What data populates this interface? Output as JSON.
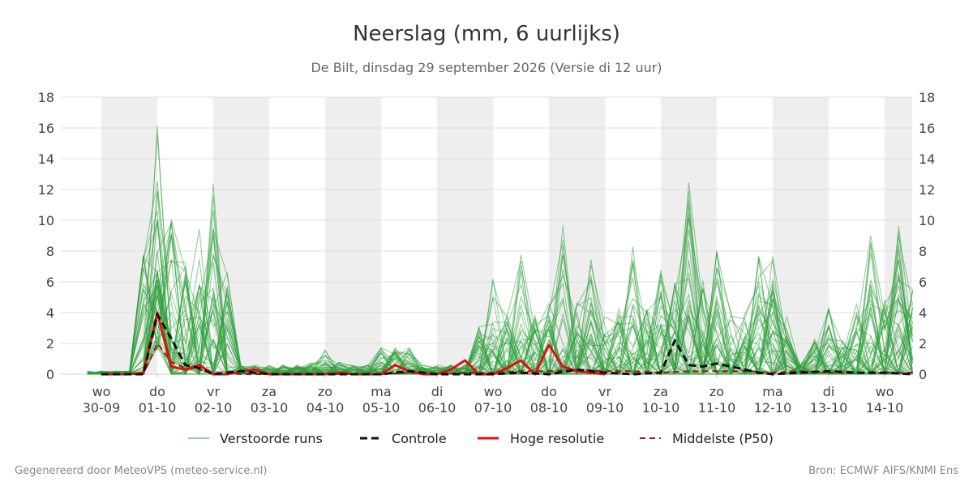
{
  "chart_data": {
    "type": "line",
    "title": "Neerslag (mm, 6 uurlijks)",
    "subtitle": "De Bilt, dinsdag 29 september 2026 (Versie di 12 uur)",
    "ylim": [
      0,
      18
    ],
    "yticks": [
      "0",
      "2",
      "4",
      "6",
      "8",
      "10",
      "12",
      "14",
      "16",
      "18"
    ],
    "xlim": [
      0,
      14.5
    ],
    "x_categories": [
      {
        "day": "wo",
        "date": "30-09"
      },
      {
        "day": "do",
        "date": "01-10"
      },
      {
        "day": "vr",
        "date": "02-10"
      },
      {
        "day": "za",
        "date": "03-10"
      },
      {
        "day": "zo",
        "date": "04-10"
      },
      {
        "day": "ma",
        "date": "05-10"
      },
      {
        "day": "di",
        "date": "06-10"
      },
      {
        "day": "wo",
        "date": "07-10"
      },
      {
        "day": "do",
        "date": "08-10"
      },
      {
        "day": "vr",
        "date": "09-10"
      },
      {
        "day": "za",
        "date": "10-10"
      },
      {
        "day": "zo",
        "date": "11-10"
      },
      {
        "day": "ma",
        "date": "12-10"
      },
      {
        "day": "di",
        "date": "13-10"
      },
      {
        "day": "wo",
        "date": "14-10"
      }
    ],
    "shaded_days": [
      0,
      2,
      4,
      6,
      8,
      10,
      12,
      14
    ],
    "grid": true,
    "legend_position": "bottom",
    "series": [
      {
        "name": "Controle",
        "color": "#111111",
        "style": "dashed",
        "x": [
          0,
          0.25,
          0.5,
          0.75,
          1.0,
          1.25,
          1.5,
          1.75,
          2.0,
          2.25,
          2.5,
          2.75,
          3.0,
          3.5,
          4.0,
          4.5,
          5.0,
          5.5,
          6.0,
          6.5,
          7.0,
          7.5,
          8.0,
          8.5,
          9.0,
          9.5,
          10.0,
          10.25,
          10.5,
          10.75,
          11.0,
          11.25,
          11.5,
          11.75,
          12.0,
          12.5,
          13.0,
          13.5,
          14.0,
          14.5
        ],
        "values": [
          0,
          0,
          0,
          0,
          3.9,
          2.3,
          0.6,
          0.4,
          0,
          0.1,
          0.2,
          0.1,
          0,
          0,
          0,
          0,
          0,
          0.2,
          0,
          0,
          0,
          0.1,
          0,
          0.3,
          0.1,
          0,
          0.1,
          2.2,
          0.6,
          0.5,
          0.7,
          0.5,
          0.3,
          0.1,
          0,
          0.1,
          0.2,
          0.1,
          0.1,
          0
        ]
      },
      {
        "name": "Hoge resolutie",
        "color": "#dd1111",
        "style": "solid",
        "x": [
          0,
          0.25,
          0.5,
          0.75,
          1.0,
          1.25,
          1.5,
          1.75,
          2.0,
          2.25,
          2.5,
          2.75,
          3.0,
          3.25,
          3.5,
          3.75,
          4.0,
          4.25,
          4.5,
          4.75,
          5.0,
          5.25,
          5.5,
          5.75,
          6.0,
          6.25,
          6.5,
          6.75,
          7.0,
          7.25,
          7.5,
          7.75,
          8.0,
          8.25,
          8.5,
          8.75,
          9.0
        ],
        "values": [
          0,
          0,
          0,
          0.1,
          4.0,
          0.5,
          0.3,
          0.6,
          0,
          0,
          0.2,
          0.3,
          0,
          0,
          0,
          0,
          0,
          0.1,
          0,
          0,
          0,
          0.6,
          0.2,
          0,
          0,
          0.3,
          0.9,
          0,
          0,
          0.4,
          0.9,
          0,
          1.9,
          0.5,
          0.2,
          0.1,
          0
        ]
      },
      {
        "name": "Middelste (P50)",
        "color": "#aa1111",
        "style": "dashed",
        "x": [
          0,
          0.25,
          0.5,
          0.75,
          1.0,
          1.25,
          1.5,
          1.75,
          2.0,
          2.5,
          3.0,
          3.5,
          4.0,
          4.5,
          5.0,
          5.5,
          6.0,
          6.5,
          7.0,
          7.5,
          8.0,
          8.5,
          9.0,
          9.5,
          10.0,
          10.5,
          11.0,
          11.5,
          12.0,
          12.5,
          13.0,
          13.5,
          14.0,
          14.5
        ],
        "values": [
          0,
          0,
          0,
          0,
          2.0,
          0.8,
          0.4,
          0.3,
          0.1,
          0,
          0,
          0,
          0,
          0,
          0,
          0.1,
          0,
          0.1,
          0.1,
          0.2,
          0.2,
          0.3,
          0.2,
          0.2,
          0.1,
          0.2,
          0.2,
          0.2,
          0.1,
          0.2,
          0.1,
          0.1,
          0.1,
          0.1
        ]
      }
    ],
    "ensemble": {
      "name": "Verstoorde runs",
      "color": "#2e9e3a",
      "members": 50,
      "peaks": [
        {
          "x": 1.0,
          "max": 16.2
        },
        {
          "x": 1.25,
          "max": 10.6
        },
        {
          "x": 1.5,
          "max": 7.3
        },
        {
          "x": 1.75,
          "max": 11.5
        },
        {
          "x": 2.0,
          "max": 13.3
        },
        {
          "x": 4.0,
          "max": 1.6
        },
        {
          "x": 5.25,
          "max": 4.2
        },
        {
          "x": 7.0,
          "max": 6.6
        },
        {
          "x": 7.5,
          "max": 8.1
        },
        {
          "x": 8.25,
          "max": 9.7
        },
        {
          "x": 8.75,
          "max": 7.8
        },
        {
          "x": 9.5,
          "max": 9.7
        },
        {
          "x": 10.0,
          "max": 7.4
        },
        {
          "x": 10.5,
          "max": 12.7
        },
        {
          "x": 11.0,
          "max": 8.6
        },
        {
          "x": 11.75,
          "max": 7.9
        },
        {
          "x": 12.0,
          "max": 8.1
        },
        {
          "x": 13.0,
          "max": 4.6
        },
        {
          "x": 13.75,
          "max": 9.5
        },
        {
          "x": 14.25,
          "max": 9.7
        },
        {
          "x": 14.5,
          "max": 6.1
        }
      ]
    },
    "legend": [
      {
        "label": "Verstoorde runs",
        "color": "#2e9e3a",
        "style": "thin"
      },
      {
        "label": "Controle",
        "color": "#111111",
        "style": "dashed"
      },
      {
        "label": "Hoge resolutie",
        "color": "#dd1111",
        "style": "solid"
      },
      {
        "label": "Middelste (P50)",
        "color": "#aa1111",
        "style": "dashed"
      }
    ]
  },
  "footer": {
    "left": "Gegenereerd door MeteoVPS (meteo-service.nl)",
    "right": "Bron: ECMWF AIFS/KNMI Ens"
  }
}
